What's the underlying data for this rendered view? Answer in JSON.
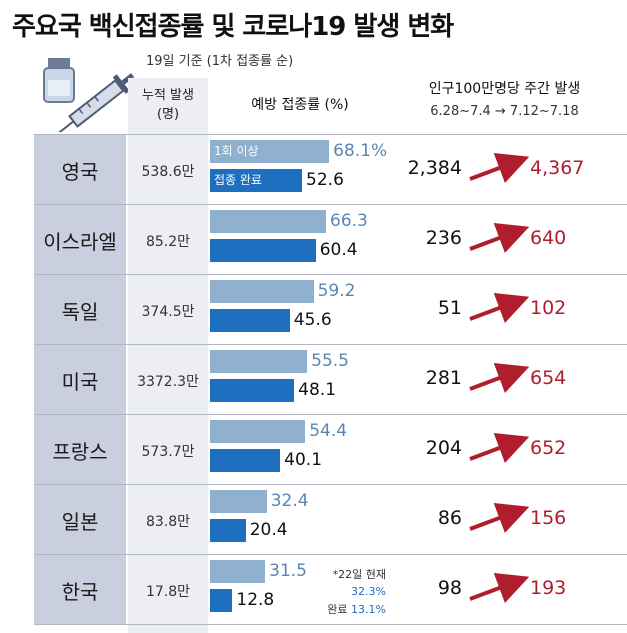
{
  "title": "주요국 백신접종률 및 코로나19 발생 변화",
  "basis": "19일 기준 (1차 접종률 순)",
  "headers": {
    "cumulative_line1": "누적 발생",
    "cumulative_line2": "(명)",
    "rate": "예방 접종률 (%)",
    "cases": "인구100만명당 주간 발생",
    "periods": "6.28~7.4  →  7.12~7.18"
  },
  "legend": {
    "first_dose": "1회 이상",
    "fully": "접종 완료"
  },
  "colors": {
    "first_dose_bar": "#8fb0cf",
    "fully_bar": "#1e6fbf",
    "country_band": "#c9cfdf",
    "arrow": "#b01e2e"
  },
  "korea_note": {
    "line1": "*22일 현재",
    "line2": "32.3%",
    "line3_label": "완료",
    "line3_value": "13.1%"
  },
  "chart_data": {
    "type": "table",
    "countries": [
      "영국",
      "이스라엘",
      "독일",
      "미국",
      "프랑스",
      "일본",
      "한국"
    ],
    "cumulative": [
      "538.6만",
      "85.2만",
      "374.5만",
      "3372.3만",
      "573.7만",
      "83.8만",
      "17.8만"
    ],
    "first_dose": [
      68.1,
      66.3,
      59.2,
      55.5,
      54.4,
      32.4,
      31.5
    ],
    "fully_vaccinated": [
      52.6,
      60.4,
      45.6,
      48.1,
      40.1,
      20.4,
      12.8
    ],
    "first_dose_labels": [
      "68.1%",
      "66.3",
      "59.2",
      "55.5",
      "54.4",
      "32.4",
      "31.5"
    ],
    "fully_labels": [
      "52.6",
      "60.4",
      "45.6",
      "48.1",
      "40.1",
      "20.4",
      "12.8"
    ],
    "cases_before_labels": [
      "2,384",
      "236",
      "51",
      "281",
      "204",
      "86",
      "98"
    ],
    "cases_after_labels": [
      "4,367",
      "640",
      "102",
      "654",
      "652",
      "156",
      "193"
    ],
    "cases_before": [
      2384,
      236,
      51,
      281,
      204,
      86,
      98
    ],
    "cases_after": [
      4367,
      640,
      102,
      654,
      652,
      156,
      193
    ]
  }
}
